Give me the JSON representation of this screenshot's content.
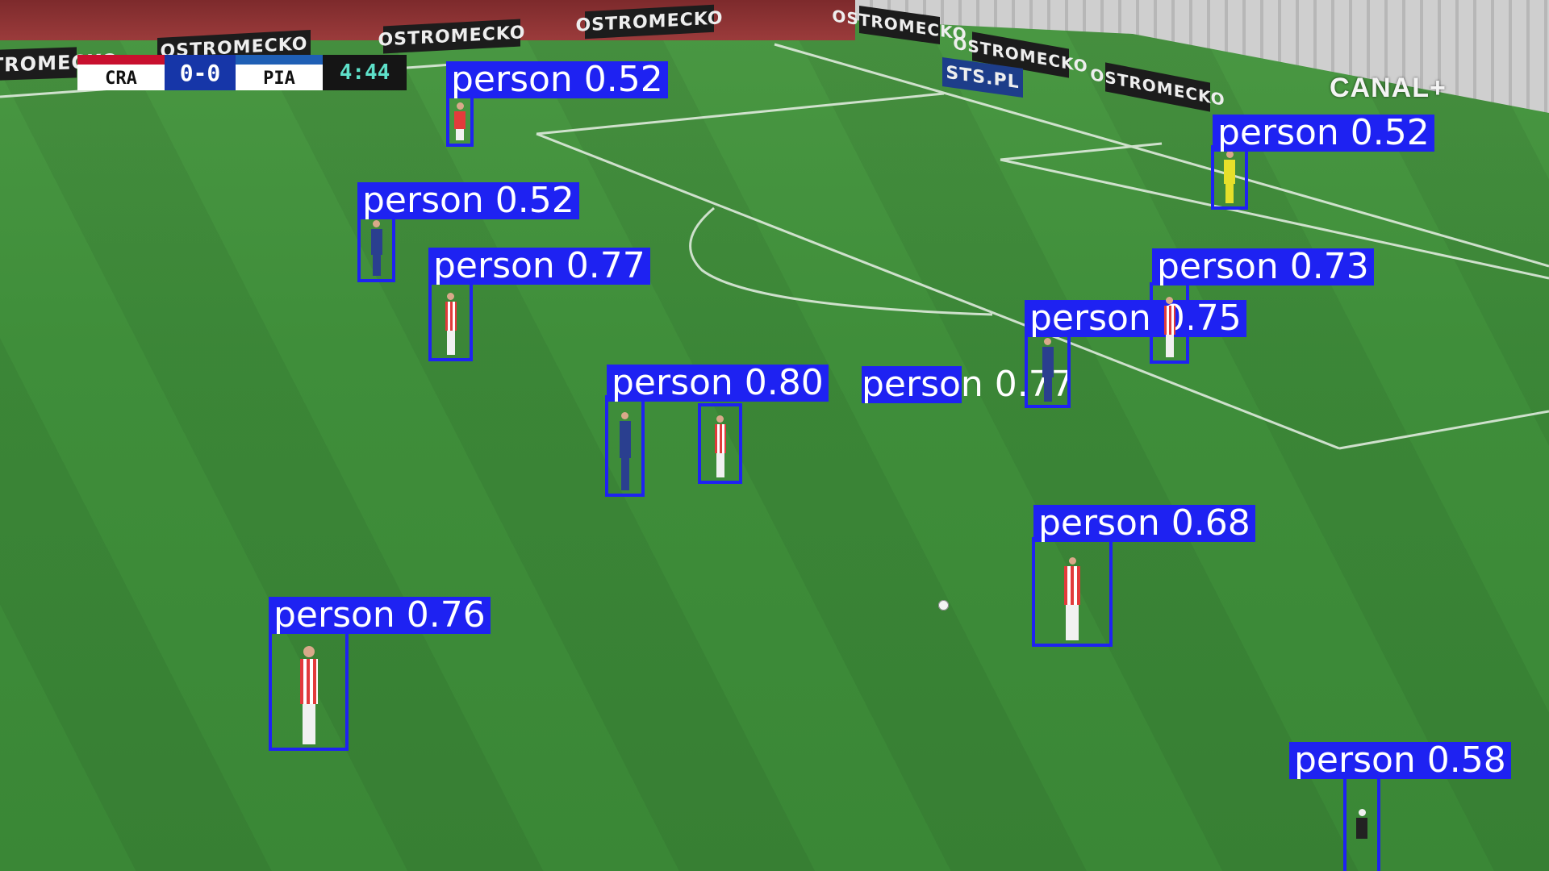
{
  "scoreboard": {
    "home_team": "CRA",
    "score": "0-0",
    "away_team": "PIA",
    "time": "4:44",
    "home_color": "#c8102e",
    "score_bg": "#1636a8"
  },
  "broadcaster": "CANAL+",
  "ad_boards": [
    "OSTROMECKO",
    "OSTROMECKO",
    "OSTROMECKO",
    "OSTROMECKO",
    "OSTROMECKO",
    "OSTROMECKO",
    "OSTROMECKO",
    "STS.PL"
  ],
  "detections": [
    {
      "label": "person 0.52",
      "kit": "home"
    },
    {
      "label": "person 0.52",
      "kit": "away"
    },
    {
      "label": "person 0.77",
      "kit": "home"
    },
    {
      "label": "person 0.80",
      "kit": "away"
    },
    {
      "label": "person 0.77",
      "kit": "home"
    },
    {
      "label": "person 0.76",
      "kit": "home"
    },
    {
      "label": "person 0.75",
      "kit": "away"
    },
    {
      "label": "person 0.73",
      "kit": "home"
    },
    {
      "label": "person 0.68",
      "kit": "home"
    },
    {
      "label": "person 0.52",
      "kit": "keeper"
    },
    {
      "label": "person 0.58",
      "kit": "other"
    }
  ],
  "colors": {
    "box": "#1e22f2",
    "home_kit": "#e23b3b",
    "away_kit": "#2a3f8f",
    "keeper_kit": "#e6e02a"
  }
}
